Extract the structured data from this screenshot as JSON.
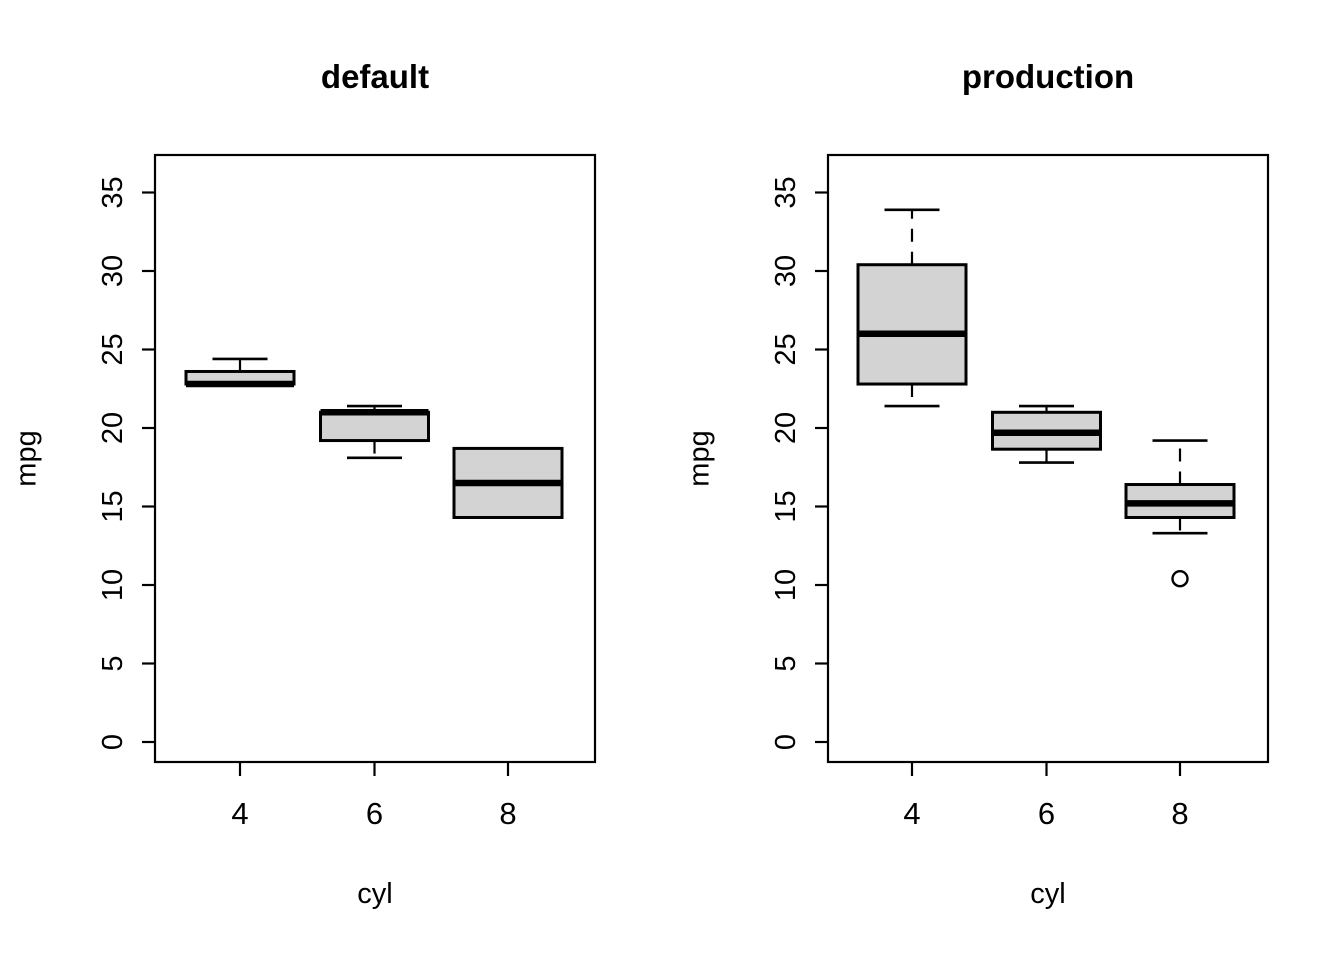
{
  "colors": {
    "background": "#ffffff",
    "box_fill": "#d3d3d3",
    "line": "#000000"
  },
  "chart_data": [
    {
      "type": "boxplot",
      "title": "default",
      "xlabel": "cyl",
      "ylabel": "mpg",
      "categories": [
        "4",
        "6",
        "8"
      ],
      "y_ticks": [
        "0",
        "5",
        "10",
        "15",
        "20",
        "25",
        "30",
        "35"
      ],
      "y_tick_values": [
        0,
        5,
        10,
        15,
        20,
        25,
        30,
        35
      ],
      "ylim": [
        0,
        35
      ],
      "grid": false,
      "groups": [
        {
          "category": "4",
          "whisker_low": 22.8,
          "q1": 22.8,
          "median": 22.8,
          "q3": 23.6,
          "whisker_high": 24.4,
          "outliers": []
        },
        {
          "category": "6",
          "whisker_low": 18.1,
          "q1": 19.2,
          "median": 21.0,
          "q3": 21.0,
          "whisker_high": 21.4,
          "outliers": []
        },
        {
          "category": "8",
          "whisker_low": 14.3,
          "q1": 14.3,
          "median": 16.5,
          "q3": 18.7,
          "whisker_high": 18.7,
          "outliers": []
        }
      ]
    },
    {
      "type": "boxplot",
      "title": "production",
      "xlabel": "cyl",
      "ylabel": "mpg",
      "categories": [
        "4",
        "6",
        "8"
      ],
      "y_ticks": [
        "0",
        "5",
        "10",
        "15",
        "20",
        "25",
        "30",
        "35"
      ],
      "y_tick_values": [
        0,
        5,
        10,
        15,
        20,
        25,
        30,
        35
      ],
      "ylim": [
        0,
        35
      ],
      "grid": false,
      "groups": [
        {
          "category": "4",
          "whisker_low": 21.4,
          "q1": 22.8,
          "median": 26.0,
          "q3": 30.4,
          "whisker_high": 33.9,
          "outliers": []
        },
        {
          "category": "6",
          "whisker_low": 17.8,
          "q1": 18.65,
          "median": 19.7,
          "q3": 21.0,
          "whisker_high": 21.4,
          "outliers": []
        },
        {
          "category": "8",
          "whisker_low": 13.3,
          "q1": 14.3,
          "median": 15.2,
          "q3": 16.4,
          "whisker_high": 19.2,
          "outliers": [
            10.4
          ]
        }
      ]
    }
  ]
}
